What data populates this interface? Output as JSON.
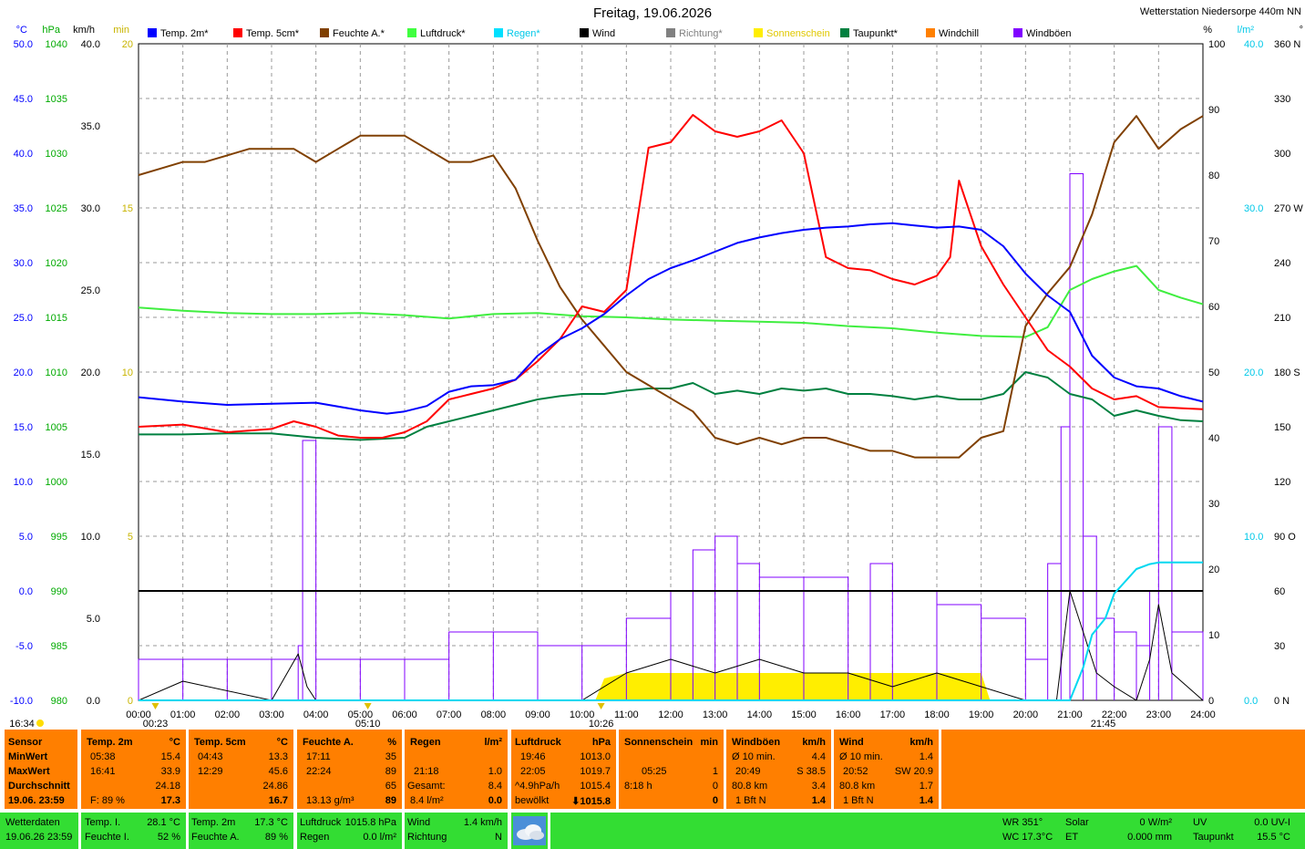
{
  "title": "Freitag, 19.06.2026",
  "station": "Wetterstation Niedersorpe 440m NN",
  "units_left": {
    "temp": "°C",
    "hpa": "hPa",
    "kmh": "km/h",
    "min": "min"
  },
  "units_right": {
    "pct": "%",
    "lm2": "l/m²",
    "deg": "°"
  },
  "legend": [
    {
      "label": "Temp. 2m*",
      "color": "#0000ff"
    },
    {
      "label": "Temp. 5cm*",
      "color": "#ff0000"
    },
    {
      "label": "Feuchte A.*",
      "color": "#804000"
    },
    {
      "label": "Luftdruck*",
      "color": "#40ff40"
    },
    {
      "label": "Regen*",
      "color": "#00e0ff"
    },
    {
      "label": "Wind",
      "color": "#000000"
    },
    {
      "label": "Richtung*",
      "color": "#808080"
    },
    {
      "label": "Sonnenschein",
      "color": "#ffee00"
    },
    {
      "label": "Taupunkt*",
      "color": "#008040"
    },
    {
      "label": "Windchill",
      "color": "#ff8000"
    },
    {
      "label": "Windböen",
      "color": "#8000ff"
    }
  ],
  "axis_labels": {
    "temp": [
      "50.0",
      "45.0",
      "40.0",
      "35.0",
      "30.0",
      "25.0",
      "20.0",
      "15.0",
      "10.0",
      "5.0",
      "0.0",
      "-5.0",
      "-10.0"
    ],
    "hpa": [
      "1040",
      "1035",
      "1030",
      "1025",
      "1020",
      "1015",
      "1010",
      "1005",
      "1000",
      "995",
      "990",
      "985",
      "980"
    ],
    "kmh": [
      "40.0",
      "35.0",
      "30.0",
      "25.0",
      "20.0",
      "15.0",
      "10.0",
      "5.0",
      "0.0"
    ],
    "min": [
      "20",
      "15",
      "10",
      "5",
      "0"
    ],
    "pct": [
      "100",
      "90",
      "80",
      "70",
      "60",
      "50",
      "40",
      "30",
      "20",
      "10",
      "0"
    ],
    "lm2": [
      "40.0",
      "30.0",
      "20.0",
      "10.0",
      "0.0"
    ],
    "deg": [
      "360 N",
      "330",
      "300",
      "270 W",
      "240",
      "210",
      "180 S",
      "150",
      "120",
      "90 O",
      "60",
      "30",
      "0 N"
    ]
  },
  "time_labels": [
    "00:00",
    "01:00",
    "02:00",
    "03:00",
    "04:00",
    "05:00",
    "06:00",
    "07:00",
    "08:00",
    "09:00",
    "10:00",
    "11:00",
    "12:00",
    "13:00",
    "14:00",
    "15:00",
    "16:00",
    "17:00",
    "18:00",
    "19:00",
    "20:00",
    "21:00",
    "22:00",
    "23:00",
    "24:00"
  ],
  "sun_marks": {
    "sunset_prev": "16:34",
    "dawn": "00:23",
    "sunrise": "05:10",
    "noon": "10:26",
    "sunset": "21:45"
  },
  "chart_data": {
    "type": "line",
    "x_unit": "hour of day",
    "xlim": [
      0,
      24
    ],
    "series": [
      {
        "name": "Temp. 2m*",
        "axis": "°C",
        "x": [
          0,
          1,
          2,
          3,
          4,
          5,
          5.6,
          6,
          6.5,
          7,
          7.5,
          8,
          8.5,
          9,
          9.5,
          10,
          10.5,
          11,
          11.5,
          12,
          12.5,
          13,
          13.5,
          14,
          14.5,
          15,
          15.5,
          16,
          16.5,
          17,
          17.5,
          18,
          18.5,
          19,
          19.5,
          20,
          20.5,
          21,
          21.5,
          22,
          22.5,
          23,
          23.5,
          24
        ],
        "y": [
          17.7,
          17.3,
          17.0,
          17.1,
          17.2,
          16.5,
          16.2,
          16.4,
          16.9,
          18.2,
          18.7,
          18.8,
          19.3,
          21.5,
          23.0,
          24.0,
          25.3,
          27.0,
          28.5,
          29.5,
          30.2,
          31.0,
          31.8,
          32.3,
          32.7,
          33.0,
          33.2,
          33.3,
          33.5,
          33.6,
          33.4,
          33.2,
          33.3,
          33.0,
          31.5,
          29.0,
          27.0,
          25.5,
          21.5,
          19.5,
          18.7,
          18.5,
          17.8,
          17.3
        ]
      },
      {
        "name": "Temp. 5cm*",
        "axis": "°C",
        "x": [
          0,
          1,
          2,
          3,
          3.5,
          4,
          4.5,
          5,
          5.5,
          6,
          6.5,
          7,
          7.5,
          8,
          8.5,
          9,
          9.5,
          10,
          10.5,
          11,
          11.5,
          12,
          12.5,
          13,
          13.5,
          14,
          14.5,
          15,
          15.5,
          16,
          16.5,
          17,
          17.5,
          18,
          18.3,
          18.5,
          19,
          19.5,
          20,
          20.5,
          21,
          21.5,
          22,
          22.5,
          23,
          23.5,
          24
        ],
        "y": [
          15.0,
          15.2,
          14.5,
          14.8,
          15.5,
          15.0,
          14.2,
          14.0,
          14.0,
          14.5,
          15.5,
          17.5,
          18.0,
          18.5,
          19.3,
          21.0,
          23.0,
          26.0,
          25.5,
          27.5,
          40.5,
          41.0,
          43.5,
          42.0,
          41.5,
          42.0,
          43.0,
          40.0,
          30.5,
          29.5,
          29.3,
          28.5,
          28.0,
          28.8,
          30.5,
          37.5,
          31.5,
          28.0,
          25.0,
          22.0,
          20.5,
          18.5,
          17.5,
          17.8,
          16.8,
          16.7,
          16.6
        ]
      },
      {
        "name": "Feuchte A.*",
        "axis": "%",
        "x": [
          0,
          0.5,
          1,
          1.5,
          2,
          2.5,
          3,
          3.5,
          4,
          4.5,
          5,
          5.5,
          6,
          6.5,
          7,
          7.5,
          8,
          8.5,
          9,
          9.5,
          10,
          10.5,
          11,
          11.5,
          12,
          12.5,
          13,
          13.5,
          14,
          14.5,
          15,
          15.5,
          16,
          16.5,
          17,
          17.5,
          18,
          18.5,
          19,
          19.5,
          20,
          20.5,
          21,
          21.5,
          22,
          22.5,
          23,
          23.5,
          24
        ],
        "y": [
          80,
          81,
          82,
          82,
          83,
          84,
          84,
          84,
          82,
          84,
          86,
          86,
          86,
          84,
          82,
          82,
          83,
          78,
          70,
          63,
          58,
          54,
          50,
          48,
          46,
          44,
          40,
          39,
          40,
          39,
          40,
          40,
          39,
          38,
          38,
          37,
          37,
          37,
          40,
          41,
          57,
          62,
          66,
          74,
          85,
          89,
          84,
          87,
          89
        ]
      },
      {
        "name": "Luftdruck*",
        "axis": "hPa",
        "x": [
          0,
          1,
          2,
          3,
          4,
          5,
          6,
          7,
          8,
          9,
          10,
          11,
          12,
          13,
          14,
          15,
          16,
          17,
          18,
          19,
          20,
          20.5,
          21,
          21.5,
          22,
          22.5,
          23,
          23.5,
          24
        ],
        "y": [
          1015.9,
          1015.6,
          1015.4,
          1015.3,
          1015.3,
          1015.4,
          1015.2,
          1014.9,
          1015.3,
          1015.4,
          1015.1,
          1015.0,
          1014.8,
          1014.7,
          1014.6,
          1014.5,
          1014.2,
          1014.0,
          1013.6,
          1013.3,
          1013.2,
          1014.1,
          1017.5,
          1018.5,
          1019.2,
          1019.7,
          1017.5,
          1016.8,
          1016.2
        ]
      },
      {
        "name": "Taupunkt*",
        "axis": "°C",
        "x": [
          0,
          1,
          2,
          3,
          4,
          5,
          6,
          6.5,
          7,
          7.5,
          8,
          8.5,
          9,
          9.5,
          10,
          10.5,
          11,
          11.5,
          12,
          12.5,
          13,
          13.5,
          14,
          14.5,
          15,
          15.5,
          16,
          16.5,
          17,
          17.5,
          18,
          18.5,
          19,
          19.5,
          20,
          20.5,
          21,
          21.5,
          22,
          22.5,
          23,
          23.5,
          24
        ],
        "y": [
          14.3,
          14.3,
          14.4,
          14.4,
          14.0,
          13.8,
          14.0,
          15.0,
          15.5,
          16.0,
          16.5,
          17.0,
          17.5,
          17.8,
          18.0,
          18.0,
          18.3,
          18.5,
          18.5,
          19.0,
          18.0,
          18.3,
          18.0,
          18.5,
          18.3,
          18.5,
          18.0,
          18.0,
          17.8,
          17.5,
          17.8,
          17.5,
          17.5,
          18.0,
          20.0,
          19.5,
          18.0,
          17.5,
          16.0,
          16.5,
          16.0,
          15.6,
          15.5
        ]
      },
      {
        "name": "Regen*",
        "axis": "l/m²",
        "x": [
          0,
          21.0,
          21.3,
          21.5,
          21.8,
          22.0,
          22.5,
          22.8,
          23.0,
          24
        ],
        "y": [
          0,
          0,
          2,
          4,
          5,
          6.5,
          8.0,
          8.3,
          8.4,
          8.4
        ]
      },
      {
        "name": "Wind",
        "axis": "km/h",
        "x": [
          0,
          1,
          3,
          3.6,
          3.8,
          4,
          5,
          10,
          11,
          12,
          13,
          14,
          15,
          16,
          17,
          18,
          19,
          20,
          20.7,
          21.0,
          21.3,
          21.6,
          22,
          22.5,
          22.8,
          23.0,
          23.3,
          24
        ],
        "y": [
          0,
          1.4,
          0,
          3.4,
          1,
          0,
          0,
          0,
          2,
          3,
          2,
          3,
          2,
          2,
          1,
          2,
          1,
          0,
          0,
          8,
          5,
          2,
          1,
          0,
          3,
          7,
          2,
          0
        ]
      },
      {
        "name": "Windböen",
        "axis": "km/h",
        "x": [
          0,
          1,
          2,
          3,
          3.6,
          3.7,
          4,
          5,
          6,
          7,
          8,
          9,
          10,
          11,
          12,
          12.5,
          13,
          13.5,
          14,
          15,
          16,
          16.5,
          17,
          18,
          19,
          20,
          20.5,
          20.8,
          21.0,
          21.3,
          21.6,
          22,
          22.5,
          22.8,
          23.0,
          23.3,
          24
        ],
        "y": [
          3,
          3,
          3,
          3,
          4,
          19,
          3,
          3,
          3,
          5,
          5,
          4,
          4,
          6,
          8,
          11,
          12,
          10,
          9,
          9,
          8,
          10,
          8,
          7,
          6,
          3,
          10,
          20,
          38.5,
          12,
          6,
          5,
          4,
          8,
          20,
          5,
          3
        ]
      },
      {
        "name": "Sonnenschein",
        "axis": "min",
        "x": [
          0,
          10.3,
          10.5,
          11,
          12,
          13,
          14,
          15,
          16,
          17,
          18,
          19,
          19.2,
          24
        ],
        "y": [
          0,
          0,
          0.8,
          1,
          1,
          1,
          1,
          1,
          1,
          1,
          1,
          1,
          0,
          0
        ]
      }
    ]
  },
  "stats": {
    "sensor": {
      "title": "Sensor",
      "min": "MinWert",
      "max": "MaxWert",
      "avg": "Durchschnitt",
      "date": "19.06. 23:59"
    },
    "temp2m": {
      "title": "Temp. 2m",
      "unit": "°C",
      "min_t": "05:38",
      "min_v": "15.4",
      "max_t": "16:41",
      "max_v": "33.9",
      "avg": "24.18",
      "extra_l": "F: 89 %",
      "cur": "17.3"
    },
    "temp5cm": {
      "title": "Temp. 5cm",
      "unit": "°C",
      "min_t": "04:43",
      "min_v": "13.3",
      "max_t": "12:29",
      "max_v": "45.6",
      "avg": "24.86",
      "cur": "16.7"
    },
    "feuchte": {
      "title": "Feuchte A.",
      "unit": "%",
      "min_t": "17:11",
      "min_v": "35",
      "max_t": "22:24",
      "max_v": "89",
      "avg": "65",
      "extra_l": "13.13 g/m³",
      "cur": "89"
    },
    "regen": {
      "title": "Regen",
      "unit": "l/m²",
      "max_t": "21:18",
      "max_v": "1.0",
      "sum_l": "Gesamt:",
      "sum_v": "8.4",
      "extra_l": "8.4 l/m²",
      "cur": "0.0"
    },
    "luftdruck": {
      "title": "Luftdruck",
      "unit": "hPa",
      "min_t": "19:46",
      "min_v": "1013.0",
      "max_t": "22:05",
      "max_v": "1019.7",
      "avg_l": "^4.9hPa/h",
      "avg": "1015.4",
      "extra_l": "bewölkt",
      "cur": "1015.8"
    },
    "sonne": {
      "title": "Sonnenschein",
      "unit": "min",
      "max_t": "05:25",
      "max_v": "1",
      "avg_l": "8:18 h",
      "avg": "0",
      "cur": "0"
    },
    "boeen": {
      "title": "Windböen",
      "unit": "km/h",
      "min_l": "Ø 10 min.",
      "min_v": "4.4",
      "max_t": "20:49",
      "max_v": "S 38.5",
      "avg_l": "80.8 km",
      "avg": "3.4",
      "extra_l": "1 Bft N",
      "cur": "1.4"
    },
    "wind": {
      "title": "Wind",
      "unit": "km/h",
      "min_l": "Ø 10 min.",
      "min_v": "1.4",
      "max_t": "20:52",
      "max_v": "SW 20.9",
      "avg_l": "80.8 km",
      "avg": "1.7",
      "extra_l": "1 Bft N",
      "cur": "1.4"
    }
  },
  "current": {
    "title": "Wetterdaten",
    "datetime": "19.06.26 23:59",
    "temp_i_l": "Temp. I.",
    "temp_i_v": "28.1 °C",
    "feuchte_i_l": "Feuchte I.",
    "feuchte_i_v": "52 %",
    "temp_2m_l": "Temp. 2m",
    "temp_2m_v": "17.3 °C",
    "feuchte_a_l": "Feuchte A.",
    "feuchte_a_v": "89 %",
    "luftdruck_l": "Luftdruck",
    "luftdruck_v": "1015.8 hPa",
    "regen_l": "Regen",
    "regen_v": "0.0 l/m²",
    "wind_l": "Wind",
    "wind_v": "1.4 km/h",
    "richtung_l": "Richtung",
    "richtung_v": "N",
    "wr": "WR 351°",
    "wc": "WC 17.3°C",
    "solar_l": "Solar",
    "solar_v": "0 W/m²",
    "et_l": "ET",
    "et_v": "0.000 mm",
    "uv_l": "UV",
    "uv_v": "0.0 UV-I",
    "taupunkt_l": "Taupunkt",
    "taupunkt_v": "15.5 °C"
  }
}
